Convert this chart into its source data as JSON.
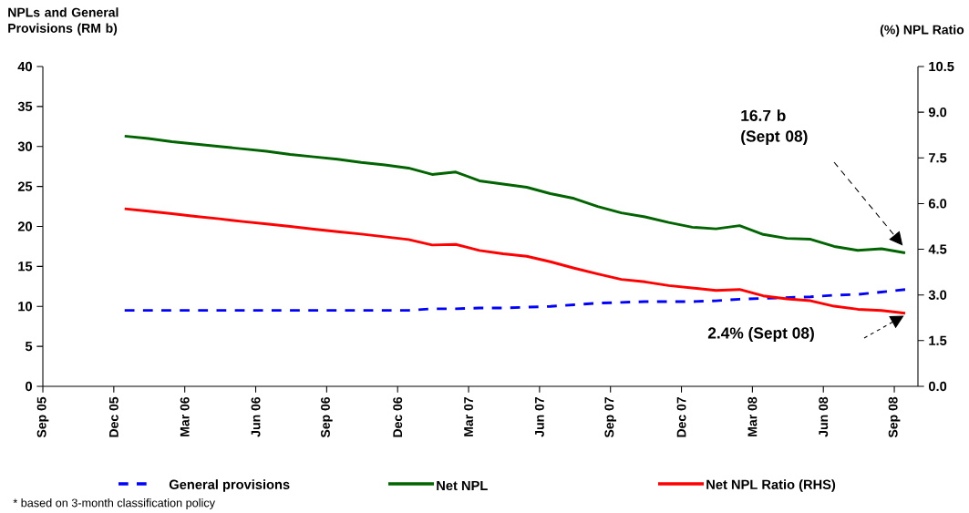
{
  "chart_data": {
    "type": "line",
    "ylabel": "NPLs and General Provisions (RM b)",
    "y2label": "(%) NPL Ratio",
    "x": [
      "2005-12-15",
      "2006-01-15",
      "2006-02-15",
      "2006-03-15",
      "2006-04-15",
      "2006-05-15",
      "2006-06-15",
      "2006-07-15",
      "2006-08-15",
      "2006-09-15",
      "2006-10-15",
      "2006-11-15",
      "2006-12-15",
      "2007-01-15",
      "2007-02-15",
      "2007-03-15",
      "2007-04-15",
      "2007-05-15",
      "2007-06-15",
      "2007-07-15",
      "2007-08-15",
      "2007-09-15",
      "2007-10-15",
      "2007-11-15",
      "2007-12-15",
      "2008-01-15",
      "2008-02-15",
      "2008-03-15",
      "2008-04-15",
      "2008-05-15",
      "2008-06-15",
      "2008-07-15",
      "2008-08-15",
      "2008-09-15"
    ],
    "xlim": [
      "2005-09-01",
      "2008-10-01"
    ],
    "xticks": [
      {
        "value": "2005-09-01",
        "label": "Sep 05"
      },
      {
        "value": "2005-12-01",
        "label": "Dec 05"
      },
      {
        "value": "2006-03-01",
        "label": "Mar 06"
      },
      {
        "value": "2006-06-01",
        "label": "Jun 06"
      },
      {
        "value": "2006-09-01",
        "label": "Sep 06"
      },
      {
        "value": "2006-12-01",
        "label": "Dec 06"
      },
      {
        "value": "2007-03-01",
        "label": "Mar 07"
      },
      {
        "value": "2007-06-01",
        "label": "Jun 07"
      },
      {
        "value": "2007-09-01",
        "label": "Sep 07"
      },
      {
        "value": "2007-12-01",
        "label": "Dec 07"
      },
      {
        "value": "2008-03-01",
        "label": "Mar 08"
      },
      {
        "value": "2008-06-01",
        "label": "Jun 08"
      },
      {
        "value": "2008-09-01",
        "label": "Sep 08"
      }
    ],
    "ylim": [
      0,
      40
    ],
    "yticks": [
      0,
      5,
      10,
      15,
      20,
      25,
      30,
      35,
      40
    ],
    "y2lim": [
      0,
      10.5
    ],
    "y2ticks": [
      {
        "value": 0,
        "label": "0.0"
      },
      {
        "value": 1.5,
        "label": "1.5"
      },
      {
        "value": 3,
        "label": "3.0"
      },
      {
        "value": 4.5,
        "label": "4.5"
      },
      {
        "value": 6,
        "label": "6.0"
      },
      {
        "value": 7.5,
        "label": "7.5"
      },
      {
        "value": 9,
        "label": "9.0"
      },
      {
        "value": 10.5,
        "label": "10.5"
      }
    ],
    "series": [
      {
        "name": "General provisions",
        "color": "#0000ff",
        "line_style": "dashed",
        "values": [
          9.5,
          9.5,
          9.5,
          9.5,
          9.5,
          9.5,
          9.5,
          9.5,
          9.5,
          9.5,
          9.5,
          9.5,
          9.5,
          9.7,
          9.7,
          9.8,
          9.8,
          9.9,
          10.0,
          10.2,
          10.4,
          10.5,
          10.6,
          10.6,
          10.6,
          10.7,
          10.9,
          11.0,
          11.1,
          11.2,
          11.4,
          11.5,
          11.8,
          12.1
        ]
      },
      {
        "name": "Net NPL",
        "color": "#006400",
        "values": [
          31.3,
          31.0,
          30.6,
          30.3,
          30.0,
          29.7,
          29.4,
          29.0,
          28.7,
          28.4,
          28.0,
          27.7,
          27.3,
          26.5,
          26.8,
          25.7,
          25.3,
          24.9,
          24.1,
          23.5,
          22.5,
          21.7,
          21.2,
          20.5,
          19.9,
          19.7,
          20.1,
          19.0,
          18.5,
          18.4,
          17.5,
          17.0,
          17.2,
          16.7
        ]
      },
      {
        "name": "Net NPL Ratio (RHS)",
        "color": "#ff0000",
        "axis": "y2",
        "values": [
          5.83,
          5.75,
          5.67,
          5.58,
          5.5,
          5.41,
          5.33,
          5.25,
          5.16,
          5.08,
          5.0,
          4.91,
          4.82,
          4.64,
          4.66,
          4.46,
          4.35,
          4.27,
          4.09,
          3.88,
          3.69,
          3.51,
          3.43,
          3.31,
          3.23,
          3.15,
          3.18,
          2.97,
          2.87,
          2.81,
          2.63,
          2.53,
          2.49,
          2.4
        ]
      }
    ],
    "annotations": [
      "16.7 b (Sept 08)",
      "2.4% (Sept 08)",
      "* based on 3-month classification policy"
    ],
    "legend": "bottom",
    "marker": "none",
    "line_style": "solid",
    "grid": false
  }
}
